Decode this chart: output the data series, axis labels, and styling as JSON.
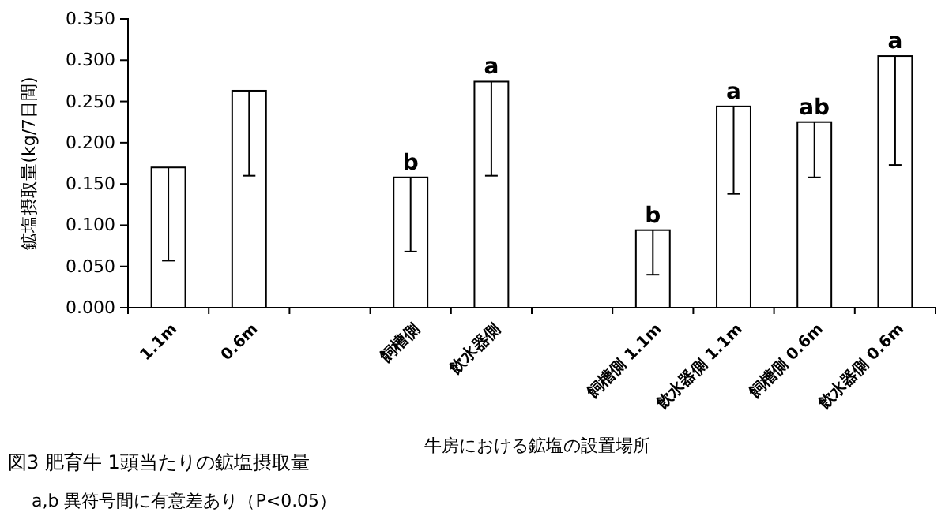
{
  "chart_data": {
    "type": "bar",
    "xlabel": "牛房における鉱塩の設置場所",
    "ylabel": "鉱塩摂取量(kg/7日間)",
    "categories": [
      "1.1m",
      "0.6m",
      null,
      "飼槽側",
      "飲水器側",
      null,
      "飼槽側 1.1m",
      "飲水器側 1.1m",
      "飼槽側 0.6m",
      "飲水器側 0.6m"
    ],
    "values": [
      0.17,
      0.263,
      null,
      0.158,
      0.274,
      null,
      0.094,
      0.244,
      0.225,
      0.305
    ],
    "errors": [
      [
        0.057,
        0.17
      ],
      [
        0.16,
        0.263
      ],
      null,
      [
        0.068,
        0.158
      ],
      [
        0.16,
        0.274
      ],
      null,
      [
        0.04,
        0.094
      ],
      [
        0.138,
        0.244
      ],
      [
        0.158,
        0.225
      ],
      [
        0.173,
        0.305
      ]
    ],
    "color": "#ffffff",
    "ylim": [
      0,
      0.35
    ],
    "yticks": [
      {
        "value": 0,
        "label": "0.000"
      },
      {
        "value": 0.05,
        "label": "0.050"
      },
      {
        "value": 0.1,
        "label": "0.100"
      },
      {
        "value": 0.15,
        "label": "0.150"
      },
      {
        "value": 0.2,
        "label": "0.200"
      },
      {
        "value": 0.25,
        "label": "0.250"
      },
      {
        "value": 0.3,
        "label": "0.300"
      },
      {
        "value": 0.35,
        "label": "0.350"
      }
    ],
    "grid": false,
    "annotations": [
      {
        "text": "b",
        "x": "飼槽側",
        "y": 0.158
      },
      {
        "text": "a",
        "x": "飲水器側",
        "y": 0.274
      },
      {
        "text": "b",
        "x": "飼槽側 1.1m",
        "y": 0.094
      },
      {
        "text": "a",
        "x": "飲水器側 1.1m",
        "y": 0.244
      },
      {
        "text": "ab",
        "x": "飼槽側 0.6m",
        "y": 0.225
      },
      {
        "text": "a",
        "x": "飲水器側 0.6m",
        "y": 0.305
      },
      "図3  肥育牛 1頭当たりの鉱塩摂取量",
      "a,b  異符号間に有意差あり（P<0.05）"
    ]
  }
}
